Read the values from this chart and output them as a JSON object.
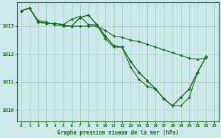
{
  "background_color": "#cce8ea",
  "grid_color": "#aacccc",
  "line_color": "#1a6e1a",
  "xlabel": "Graphe pression niveau de la mer (hPa)",
  "ylim": [
    1009.6,
    1013.85
  ],
  "yticks": [
    1010,
    1011,
    1012,
    1013
  ],
  "xlim": [
    -0.5,
    23.5
  ],
  "xticks": [
    0,
    1,
    2,
    3,
    4,
    5,
    6,
    7,
    8,
    9,
    10,
    11,
    12,
    13,
    14,
    15,
    16,
    17,
    18,
    19,
    20,
    21,
    22,
    23
  ],
  "line1_x": [
    0,
    1,
    2,
    3,
    4,
    5,
    6,
    7,
    8,
    9,
    10,
    11,
    12,
    13,
    14,
    15,
    16,
    17,
    18,
    19,
    20,
    21,
    22
  ],
  "line1_y": [
    1013.55,
    1013.65,
    1013.15,
    1013.1,
    1013.1,
    1013.05,
    1013.0,
    1013.0,
    1013.0,
    1013.0,
    1012.85,
    1012.65,
    1012.6,
    1012.5,
    1012.45,
    1012.35,
    1012.25,
    1012.15,
    1012.05,
    1011.95,
    1011.85,
    1011.82,
    1011.85
  ],
  "line2_x": [
    0,
    1,
    2,
    3,
    4,
    5,
    6,
    7,
    8,
    9,
    10,
    11,
    12,
    13,
    14,
    15,
    16,
    17,
    18,
    19,
    20,
    21,
    22
  ],
  "line2_y": [
    1013.55,
    1013.65,
    1013.15,
    1013.1,
    1013.1,
    1013.05,
    1013.25,
    1013.35,
    1013.05,
    1013.05,
    1012.55,
    1012.25,
    1012.25,
    1011.55,
    1011.1,
    1010.85,
    1010.75,
    1010.4,
    1010.15,
    1010.45,
    1010.75,
    1011.35,
    1011.9
  ],
  "line3_x": [
    0,
    1,
    2,
    3,
    4,
    5,
    6,
    7,
    8,
    9,
    10,
    11,
    12,
    13,
    14,
    15,
    16,
    17,
    18,
    19,
    20,
    21,
    22
  ],
  "line3_y": [
    1013.55,
    1013.65,
    1013.2,
    1013.15,
    1013.05,
    1013.0,
    1013.0,
    1013.3,
    1013.4,
    1013.05,
    1012.65,
    1012.3,
    1012.25,
    1011.75,
    1011.35,
    1011.05,
    1010.75,
    1010.4,
    1010.15,
    1010.45,
    1010.75,
    1011.35,
    1011.9
  ],
  "line4_x": [
    0,
    1,
    2,
    3,
    4,
    5,
    6,
    7,
    8,
    9,
    10,
    11,
    12,
    13,
    14,
    15,
    16,
    17,
    18,
    19,
    20,
    21,
    22
  ],
  "line4_y": [
    1013.55,
    1013.65,
    1013.15,
    1013.1,
    1013.1,
    1013.05,
    1013.0,
    1013.3,
    1013.4,
    1013.05,
    1012.65,
    1012.3,
    1012.25,
    1011.75,
    1011.35,
    1011.05,
    1010.75,
    1010.4,
    1010.15,
    1010.15,
    1010.45,
    1011.35,
    1011.9
  ]
}
